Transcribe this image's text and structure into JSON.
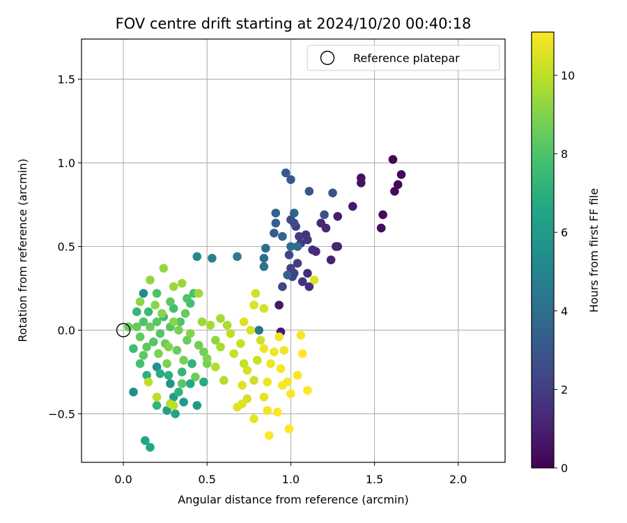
{
  "chart_data": {
    "type": "scatter",
    "title": "FOV centre drift starting at 2024/10/20 00:40:18",
    "xlabel": "Angular distance from reference (arcmin)",
    "ylabel": "Rotation from reference (arcmin)",
    "xlim": [
      -0.25,
      2.28
    ],
    "ylim": [
      -0.79,
      1.74
    ],
    "xticks": [
      0.0,
      0.5,
      1.0,
      1.5,
      2.0
    ],
    "xtick_labels": [
      "0.0",
      "0.5",
      "1.0",
      "1.5",
      "2.0"
    ],
    "yticks": [
      -0.5,
      0.0,
      0.5,
      1.0,
      1.5
    ],
    "ytick_labels": [
      "−0.5",
      "0.0",
      "0.5",
      "1.0",
      "1.5"
    ],
    "grid": true,
    "legend_position": "top-right",
    "reference": {
      "label": "Reference platepar",
      "x": 0.0,
      "y": 0.0,
      "marker": "hollow-circle"
    },
    "colorbar": {
      "label": "Hours from first FF file",
      "colormap": "viridis",
      "range": [
        0,
        11.1
      ],
      "ticks": [
        0,
        2,
        4,
        6,
        8,
        10
      ],
      "tick_labels": [
        "0",
        "2",
        "4",
        "6",
        "8",
        "10"
      ]
    },
    "series": [
      {
        "columns": [
          "x",
          "y",
          "hours"
        ],
        "points": [
          [
            1.61,
            1.02,
            0.1
          ],
          [
            1.66,
            0.93,
            0.2
          ],
          [
            1.64,
            0.87,
            0.2
          ],
          [
            1.62,
            0.83,
            0.3
          ],
          [
            1.55,
            0.69,
            0.3
          ],
          [
            1.54,
            0.61,
            0.4
          ],
          [
            1.42,
            0.91,
            0.5
          ],
          [
            1.42,
            0.88,
            0.6
          ],
          [
            1.37,
            0.74,
            0.7
          ],
          [
            0.93,
            0.15,
            0.7
          ],
          [
            0.94,
            -0.01,
            0.8
          ],
          [
            1.28,
            0.68,
            0.9
          ],
          [
            1.24,
            0.42,
            1.0
          ],
          [
            1.27,
            0.5,
            1.0
          ],
          [
            1.28,
            0.5,
            1.1
          ],
          [
            1.21,
            0.61,
            1.2
          ],
          [
            1.18,
            0.64,
            1.2
          ],
          [
            1.15,
            0.47,
            1.3
          ],
          [
            1.13,
            0.48,
            1.4
          ],
          [
            1.1,
            0.34,
            1.4
          ],
          [
            1.11,
            0.26,
            1.5
          ],
          [
            1.07,
            0.29,
            1.6
          ],
          [
            1.09,
            0.57,
            1.6
          ],
          [
            1.1,
            0.54,
            1.7
          ],
          [
            1.06,
            0.52,
            1.8
          ],
          [
            1.05,
            0.56,
            1.9
          ],
          [
            1.03,
            0.62,
            2.0
          ],
          [
            1.04,
            0.4,
            2.0
          ],
          [
            1.02,
            0.34,
            2.1
          ],
          [
            1.01,
            0.32,
            2.2
          ],
          [
            1.0,
            0.37,
            2.2
          ],
          [
            0.99,
            0.45,
            2.3
          ],
          [
            0.95,
            0.26,
            2.4
          ],
          [
            1.0,
            0.66,
            2.5
          ],
          [
            1.02,
            0.64,
            2.6
          ],
          [
            1.2,
            0.69,
            2.7
          ],
          [
            1.25,
            0.82,
            2.8
          ],
          [
            1.11,
            0.83,
            2.9
          ],
          [
            1.0,
            0.9,
            3.0
          ],
          [
            0.97,
            0.94,
            3.1
          ],
          [
            0.9,
            0.58,
            3.2
          ],
          [
            0.91,
            0.64,
            3.3
          ],
          [
            0.91,
            0.7,
            3.4
          ],
          [
            1.02,
            0.7,
            3.5
          ],
          [
            0.98,
            0.33,
            3.6
          ],
          [
            0.95,
            0.56,
            3.7
          ],
          [
            1.04,
            0.5,
            3.8
          ],
          [
            1.0,
            0.5,
            3.9
          ],
          [
            0.85,
            0.49,
            4.0
          ],
          [
            0.84,
            0.43,
            4.1
          ],
          [
            0.84,
            0.38,
            4.2
          ],
          [
            0.81,
            0.0,
            4.3
          ],
          [
            0.68,
            0.44,
            4.6
          ],
          [
            0.53,
            0.43,
            4.9
          ],
          [
            0.44,
            0.44,
            5.2
          ],
          [
            0.12,
            0.22,
            5.3
          ],
          [
            0.06,
            -0.37,
            5.5
          ],
          [
            0.2,
            -0.22,
            5.6
          ],
          [
            0.28,
            -0.32,
            5.8
          ],
          [
            0.44,
            -0.45,
            6.0
          ],
          [
            0.36,
            -0.43,
            6.1
          ],
          [
            0.3,
            -0.4,
            6.2
          ],
          [
            0.26,
            -0.48,
            6.3
          ],
          [
            0.31,
            -0.5,
            6.4
          ],
          [
            0.13,
            -0.66,
            6.5
          ],
          [
            0.16,
            -0.7,
            6.6
          ],
          [
            0.4,
            -0.32,
            6.7
          ],
          [
            0.48,
            -0.31,
            6.8
          ],
          [
            0.22,
            -0.26,
            6.9
          ],
          [
            0.14,
            -0.27,
            7.0
          ],
          [
            0.33,
            -0.37,
            7.1
          ],
          [
            0.2,
            -0.45,
            7.2
          ],
          [
            0.35,
            -0.25,
            7.3
          ],
          [
            0.08,
            0.11,
            7.4
          ],
          [
            0.15,
            0.11,
            7.5
          ],
          [
            0.24,
            0.08,
            7.6
          ],
          [
            0.3,
            0.13,
            7.7
          ],
          [
            0.4,
            0.16,
            7.8
          ],
          [
            0.42,
            0.22,
            7.9
          ],
          [
            0.38,
            0.19,
            8.0
          ],
          [
            0.34,
            0.05,
            8.0
          ],
          [
            0.28,
            0.02,
            8.1
          ],
          [
            0.22,
            -0.02,
            8.1
          ],
          [
            0.2,
            0.05,
            8.2
          ],
          [
            0.18,
            -0.07,
            8.2
          ],
          [
            0.14,
            -0.1,
            8.3
          ],
          [
            0.12,
            -0.15,
            8.3
          ],
          [
            0.1,
            -0.04,
            8.4
          ],
          [
            0.08,
            0.02,
            8.4
          ],
          [
            0.16,
            0.02,
            8.5
          ],
          [
            0.25,
            -0.08,
            8.5
          ],
          [
            0.32,
            -0.12,
            8.6
          ],
          [
            0.38,
            -0.06,
            8.6
          ],
          [
            0.45,
            -0.09,
            8.7
          ],
          [
            0.48,
            -0.13,
            8.7
          ],
          [
            0.5,
            -0.2,
            8.8
          ],
          [
            0.36,
            -0.18,
            8.8
          ],
          [
            0.26,
            -0.2,
            8.9
          ],
          [
            0.21,
            -0.14,
            8.9
          ],
          [
            0.27,
            -0.1,
            9.0
          ],
          [
            0.4,
            -0.02,
            9.0
          ],
          [
            0.3,
            0.05,
            9.1
          ],
          [
            0.23,
            0.1,
            9.1
          ],
          [
            0.19,
            0.15,
            9.2
          ],
          [
            0.1,
            0.17,
            9.2
          ],
          [
            0.16,
            0.3,
            9.3
          ],
          [
            0.24,
            0.37,
            9.3
          ],
          [
            0.3,
            0.26,
            9.4
          ],
          [
            0.35,
            0.28,
            9.4
          ],
          [
            0.45,
            0.22,
            9.5
          ],
          [
            0.47,
            0.05,
            9.5
          ],
          [
            0.52,
            0.03,
            9.6
          ],
          [
            0.58,
            0.07,
            9.6
          ],
          [
            0.62,
            0.03,
            9.7
          ],
          [
            0.58,
            -0.1,
            9.7
          ],
          [
            0.55,
            -0.22,
            9.8
          ],
          [
            0.6,
            -0.3,
            9.8
          ],
          [
            0.28,
            -0.44,
            9.9
          ],
          [
            0.2,
            -0.4,
            9.9
          ],
          [
            0.15,
            -0.31,
            10.0
          ],
          [
            0.3,
            -0.45,
            10.0
          ],
          [
            0.7,
            -0.08,
            10.1
          ],
          [
            0.72,
            -0.2,
            10.1
          ],
          [
            0.78,
            -0.3,
            10.2
          ],
          [
            0.8,
            -0.18,
            10.2
          ],
          [
            0.82,
            -0.06,
            10.3
          ],
          [
            0.79,
            0.22,
            10.3
          ],
          [
            0.84,
            0.13,
            10.4
          ],
          [
            0.76,
            0.0,
            10.4
          ],
          [
            0.72,
            0.05,
            10.5
          ],
          [
            0.78,
            0.15,
            10.5
          ],
          [
            0.68,
            -0.46,
            10.6
          ],
          [
            0.71,
            -0.44,
            10.6
          ],
          [
            0.78,
            -0.53,
            10.7
          ],
          [
            0.84,
            -0.4,
            10.7
          ],
          [
            0.86,
            -0.31,
            10.8
          ],
          [
            0.88,
            -0.2,
            10.8
          ],
          [
            0.9,
            -0.13,
            10.9
          ],
          [
            0.93,
            -0.04,
            10.9
          ],
          [
            0.96,
            -0.12,
            10.9
          ],
          [
            0.98,
            -0.31,
            11.0
          ],
          [
            1.0,
            -0.38,
            11.0
          ],
          [
            1.04,
            -0.27,
            11.0
          ],
          [
            1.06,
            -0.03,
            11.0
          ],
          [
            1.07,
            -0.14,
            11.1
          ],
          [
            1.1,
            -0.36,
            11.1
          ],
          [
            0.87,
            -0.63,
            11.1
          ],
          [
            0.99,
            -0.59,
            11.1
          ],
          [
            0.92,
            -0.49,
            11.1
          ],
          [
            0.74,
            -0.24,
            10.4
          ],
          [
            0.66,
            -0.14,
            10.2
          ],
          [
            0.64,
            -0.02,
            10.0
          ],
          [
            0.71,
            -0.33,
            10.6
          ],
          [
            0.84,
            -0.11,
            10.8
          ],
          [
            0.94,
            -0.23,
            11.0
          ],
          [
            0.55,
            -0.06,
            9.2
          ],
          [
            0.5,
            -0.17,
            9.0
          ],
          [
            0.43,
            -0.28,
            8.6
          ],
          [
            0.35,
            -0.32,
            8.2
          ],
          [
            0.1,
            -0.2,
            7.8
          ],
          [
            0.06,
            -0.11,
            7.6
          ],
          [
            0.33,
            0.0,
            8.8
          ],
          [
            0.37,
            0.1,
            8.5
          ],
          [
            0.28,
            0.17,
            8.3
          ],
          [
            0.2,
            0.22,
            7.9
          ],
          [
            0.27,
            -0.27,
            7.0
          ],
          [
            0.41,
            -0.2,
            7.2
          ],
          [
            1.14,
            0.3,
            10.5
          ],
          [
            0.86,
            -0.48,
            10.9
          ],
          [
            0.74,
            -0.41,
            10.4
          ],
          [
            0.95,
            -0.33,
            11.0
          ],
          [
            0.12,
            0.05,
            8.0
          ],
          [
            0.03,
            0.02,
            8.6
          ]
        ]
      }
    ]
  }
}
